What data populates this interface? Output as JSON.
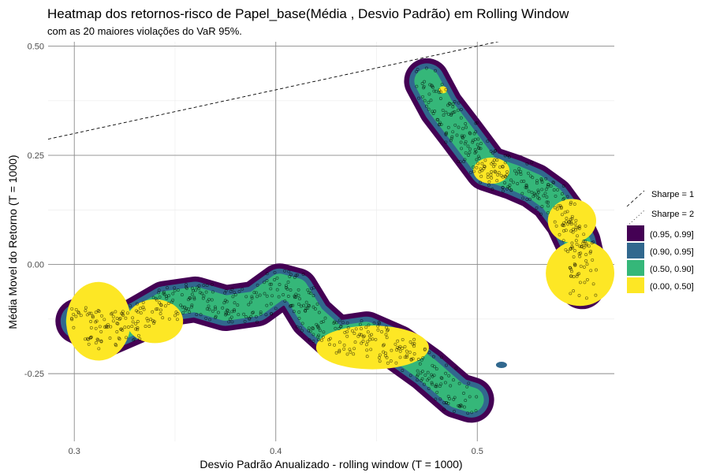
{
  "chart_data": {
    "type": "heatmap",
    "title": "Heatmap dos retornos-risco de Papel_base(Média , Desvio Padrão) em Rolling Window",
    "subtitle": "com as 20 maiores violações do VaR 95%.",
    "xlabel": "Desvio Padrão Anualizado - rolling window (T = 1000)",
    "ylabel": "Média Movel do Retorno (T = 1000)",
    "xlim": [
      0.287,
      0.568
    ],
    "ylim": [
      -0.405,
      0.51
    ],
    "x_ticks": [
      {
        "value": 0.3,
        "label": "0.3"
      },
      {
        "value": 0.4,
        "label": "0.4"
      },
      {
        "value": 0.5,
        "label": "0.5"
      }
    ],
    "y_ticks": [
      {
        "value": 0.5,
        "label": "0.50"
      },
      {
        "value": 0.25,
        "label": "0.25"
      },
      {
        "value": 0.0,
        "label": "0.00"
      },
      {
        "value": -0.25,
        "label": "-0.25"
      }
    ],
    "grid": true,
    "legend_position": "right",
    "reference_lines": [
      {
        "name": "Sharpe = 1",
        "slope": 1,
        "style": "dashed"
      },
      {
        "name": "Sharpe = 2",
        "slope": 2,
        "style": "dotted"
      }
    ],
    "density_levels": [
      {
        "label": "(0.95, 0.99]",
        "color": "#440154"
      },
      {
        "label": "(0.90, 0.95]",
        "color": "#31688e"
      },
      {
        "label": "(0.50, 0.90]",
        "color": "#35b779"
      },
      {
        "label": "(0.00, 0.50]",
        "color": "#fde725"
      }
    ],
    "path": [
      [
        0.302,
        -0.13
      ],
      [
        0.315,
        -0.16
      ],
      [
        0.33,
        -0.13
      ],
      [
        0.345,
        -0.09
      ],
      [
        0.36,
        -0.08
      ],
      [
        0.375,
        -0.1
      ],
      [
        0.39,
        -0.09
      ],
      [
        0.402,
        -0.05
      ],
      [
        0.41,
        -0.06
      ],
      [
        0.418,
        -0.12
      ],
      [
        0.43,
        -0.17
      ],
      [
        0.445,
        -0.16
      ],
      [
        0.46,
        -0.19
      ],
      [
        0.475,
        -0.24
      ],
      [
        0.49,
        -0.3
      ],
      [
        0.497,
        -0.31
      ]
    ],
    "path2": [
      [
        0.475,
        0.42
      ],
      [
        0.482,
        0.36
      ],
      [
        0.492,
        0.3
      ],
      [
        0.505,
        0.22
      ],
      [
        0.518,
        0.2
      ],
      [
        0.528,
        0.18
      ],
      [
        0.537,
        0.15
      ],
      [
        0.545,
        0.1
      ],
      [
        0.55,
        0.05
      ],
      [
        0.553,
        -0.01
      ],
      [
        0.552,
        -0.05
      ]
    ],
    "hotspots": [
      {
        "x": 0.312,
        "y": -0.13,
        "rx": 0.016,
        "ry": 0.09
      },
      {
        "x": 0.34,
        "y": -0.13,
        "rx": 0.014,
        "ry": 0.05
      },
      {
        "x": 0.448,
        "y": -0.19,
        "rx": 0.028,
        "ry": 0.05
      },
      {
        "x": 0.507,
        "y": 0.215,
        "rx": 0.009,
        "ry": 0.03
      },
      {
        "x": 0.547,
        "y": 0.1,
        "rx": 0.012,
        "ry": 0.05
      },
      {
        "x": 0.551,
        "y": -0.02,
        "rx": 0.017,
        "ry": 0.075
      },
      {
        "x": 0.483,
        "y": 0.4,
        "rx": 0.002,
        "ry": 0.008
      }
    ],
    "isolated_regions": [
      {
        "x": 0.512,
        "y": -0.23,
        "level": "(0.90, 0.95]"
      }
    ]
  }
}
